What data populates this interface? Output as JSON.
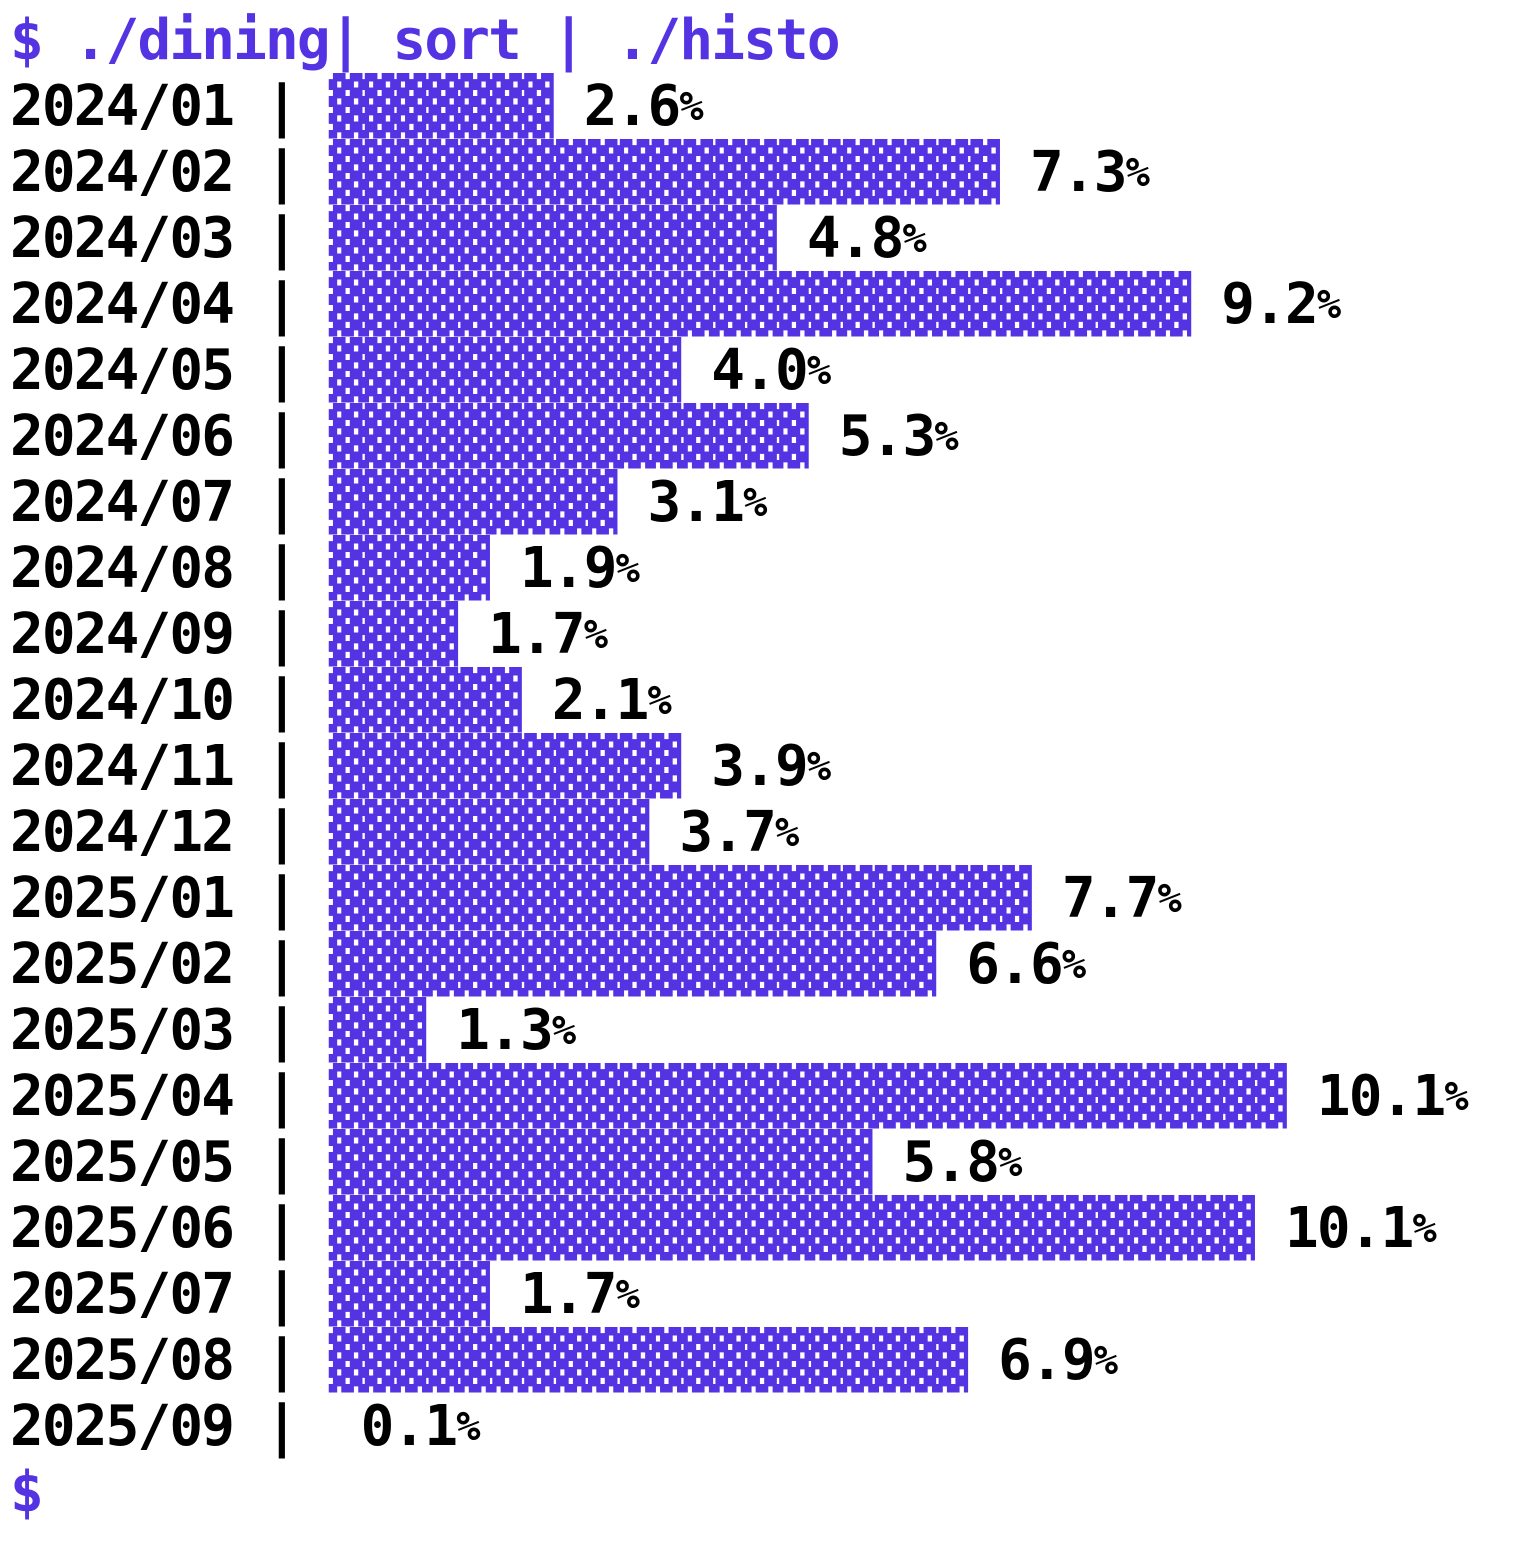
{
  "terminal": {
    "prompt": "$ ",
    "command": "./dining| sort | ./histo",
    "trailing_prompt": "$",
    "row_format": {
      "separator": " | ",
      "gap": " "
    },
    "colors": {
      "accent": "#5433e2",
      "text": "#000000",
      "background": "#ffffff"
    }
  },
  "chart_data": {
    "type": "bar",
    "orientation": "horizontal",
    "render_style": "terminal-text-histogram",
    "title": "$ ./dining| sort | ./histo",
    "categories": [
      "2024/01",
      "2024/02",
      "2024/03",
      "2024/04",
      "2024/05",
      "2024/06",
      "2024/07",
      "2024/08",
      "2024/09",
      "2024/10",
      "2024/11",
      "2024/12",
      "2025/01",
      "2025/02",
      "2025/03",
      "2025/04",
      "2025/05",
      "2025/06",
      "2025/07",
      "2025/08",
      "2025/09"
    ],
    "values": [
      2.6,
      7.3,
      4.8,
      9.2,
      4.0,
      5.3,
      3.1,
      1.9,
      1.7,
      2.1,
      3.9,
      3.7,
      7.7,
      6.6,
      1.3,
      10.1,
      5.8,
      10.1,
      1.7,
      6.9,
      0.1
    ],
    "value_labels": [
      "2.6",
      "7.3",
      "4.8",
      "9.2",
      "4.0",
      "5.3",
      "3.1",
      "1.9",
      "1.7",
      "2.1",
      "3.9",
      "3.7",
      "7.7",
      "6.6",
      "1.3",
      "10.1",
      "5.8",
      "10.1",
      "1.7",
      "6.9",
      "0.1"
    ],
    "bar_char_counts": [
      7,
      21,
      14,
      27,
      11,
      15,
      9,
      5,
      4,
      6,
      11,
      10,
      22,
      19,
      3,
      30,
      17,
      29,
      5,
      20,
      0
    ],
    "unit": "%",
    "bar_glyph": "▓",
    "xlim": [
      0,
      10.5
    ],
    "grid": false,
    "legend": false
  }
}
